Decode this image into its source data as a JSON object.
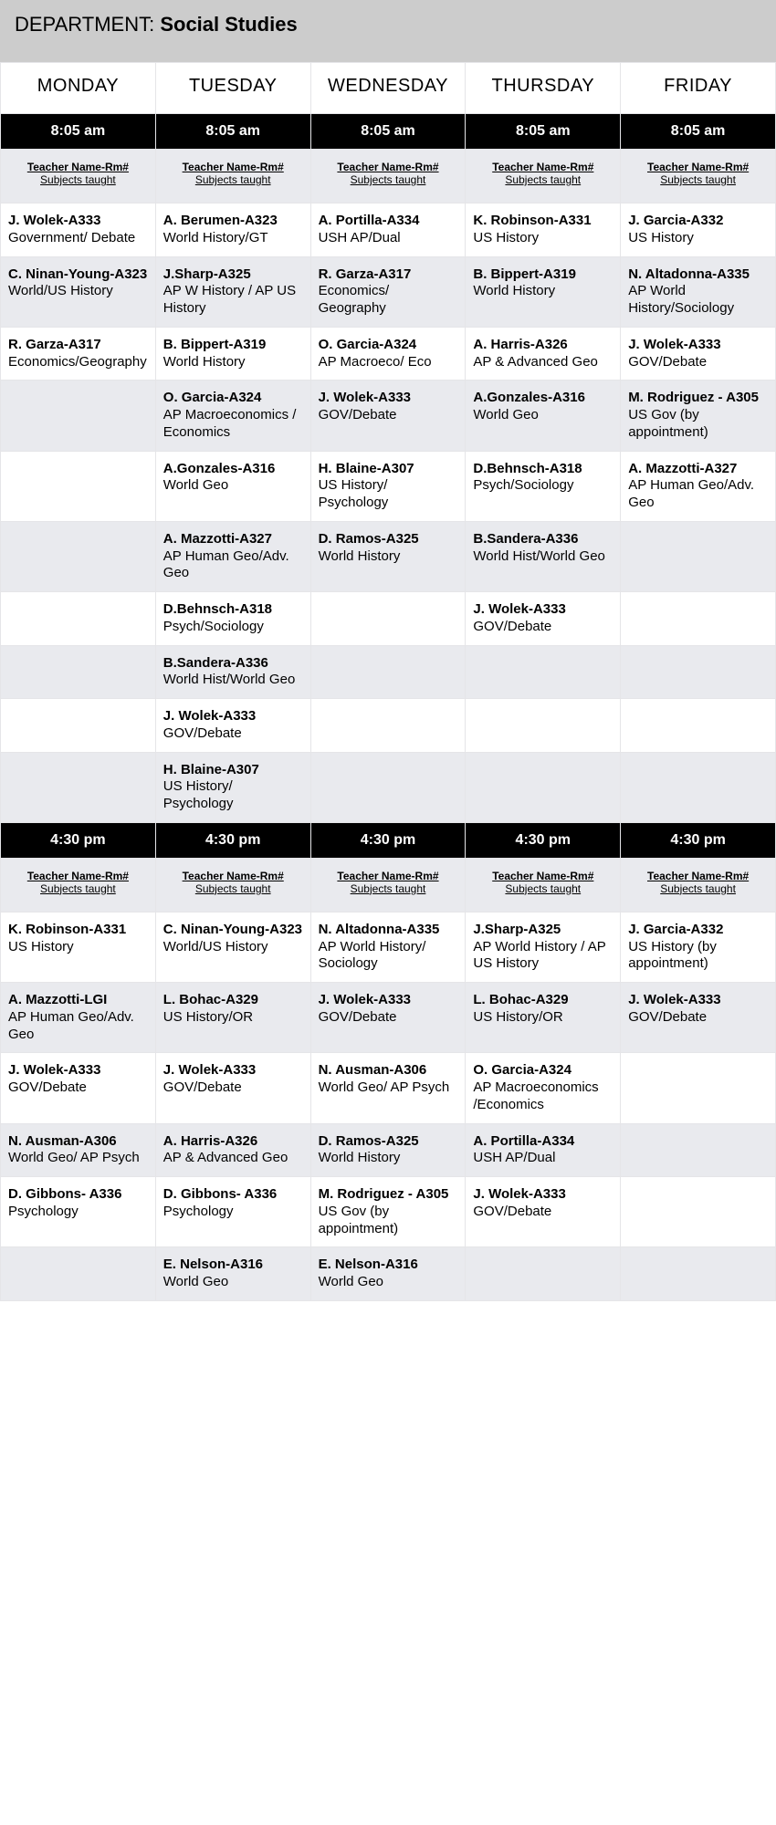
{
  "department_label": "DEPARTMENT:  ",
  "department_value": "Social Studies",
  "days": [
    "MONDAY",
    "TUESDAY",
    "WEDNESDAY",
    "THURSDAY",
    "FRIDAY"
  ],
  "time_am": "8:05 am",
  "time_pm": "4:30 pm",
  "subhead_line1": "Teacher Name-Rm#",
  "subhead_line2": "Subjects taught",
  "colors": {
    "header_bg": "#cccccc",
    "time_bg": "#000000",
    "time_fg": "#ffffff",
    "alt_bg": "#e9eaee",
    "border": "#e5e5e8"
  },
  "am_rows": [
    [
      {
        "t": "J. Wolek-A333",
        "s": "Government/ Debate"
      },
      {
        "t": "A. Berumen-A323",
        "s": "World History/GT"
      },
      {
        "t": "A. Portilla-A334",
        "s": "USH AP/Dual"
      },
      {
        "t": "K. Robinson-A331",
        "s": "US History"
      },
      {
        "t": "J. Garcia-A332",
        "s": "US History"
      }
    ],
    [
      {
        "t": "C. Ninan-Young-A323",
        "s": "World/US History"
      },
      {
        "t": "J.Sharp-A325",
        "s": "AP W History / AP US History"
      },
      {
        "t": "R. Garza-A317",
        "s": "Economics/ Geography"
      },
      {
        "t": "B. Bippert-A319",
        "s": "World History"
      },
      {
        "t": "N. Altadonna-A335",
        "s": "AP World History/Sociology"
      }
    ],
    [
      {
        "t": "R. Garza-A317",
        "s": "Economics/Geography"
      },
      {
        "t": "B. Bippert-A319",
        "s": "World History"
      },
      {
        "t": "O. Garcia-A324",
        "s": "AP Macroeco/ Eco"
      },
      {
        "t": "A. Harris-A326",
        "s": "AP & Advanced Geo"
      },
      {
        "t": "J. Wolek-A333",
        "s": "GOV/Debate"
      }
    ],
    [
      {
        "t": "",
        "s": ""
      },
      {
        "t": "O. Garcia-A324",
        "s": "AP Macroeconomics / Economics"
      },
      {
        "t": "J. Wolek-A333",
        "s": "GOV/Debate"
      },
      {
        "t": "A.Gonzales-A316",
        "s": "World Geo"
      },
      {
        "t": "M. Rodriguez - A305",
        "s": "US Gov (by appointment)"
      }
    ],
    [
      {
        "t": "",
        "s": ""
      },
      {
        "t": "A.Gonzales-A316",
        "s": "World Geo"
      },
      {
        "t": "H. Blaine-A307",
        "s": "US History/ Psychology"
      },
      {
        "t": "D.Behnsch-A318",
        "s": "Psych/Sociology"
      },
      {
        "t": "A. Mazzotti-A327",
        "s": "AP Human Geo/Adv. Geo"
      }
    ],
    [
      {
        "t": "",
        "s": ""
      },
      {
        "t": "A. Mazzotti-A327",
        "s": "AP Human Geo/Adv. Geo"
      },
      {
        "t": "D. Ramos-A325",
        "s": "World History"
      },
      {
        "t": "B.Sandera-A336",
        "s": "World Hist/World Geo"
      },
      {
        "t": "",
        "s": ""
      }
    ],
    [
      {
        "t": "",
        "s": ""
      },
      {
        "t": "D.Behnsch-A318",
        "s": "Psych/Sociology"
      },
      {
        "t": "",
        "s": ""
      },
      {
        "t": "J. Wolek-A333",
        "s": "GOV/Debate"
      },
      {
        "t": "",
        "s": ""
      }
    ],
    [
      {
        "t": "",
        "s": ""
      },
      {
        "t": "B.Sandera-A336",
        "s": "World Hist/World Geo"
      },
      {
        "t": "",
        "s": ""
      },
      {
        "t": "",
        "s": ""
      },
      {
        "t": "",
        "s": ""
      }
    ],
    [
      {
        "t": "",
        "s": ""
      },
      {
        "t": "J. Wolek-A333",
        "s": "GOV/Debate"
      },
      {
        "t": "",
        "s": ""
      },
      {
        "t": "",
        "s": ""
      },
      {
        "t": "",
        "s": ""
      }
    ],
    [
      {
        "t": "",
        "s": ""
      },
      {
        "t": "H. Blaine-A307",
        "s": "US History/ Psychology"
      },
      {
        "t": "",
        "s": ""
      },
      {
        "t": "",
        "s": ""
      },
      {
        "t": "",
        "s": ""
      }
    ]
  ],
  "pm_rows": [
    [
      {
        "t": "K. Robinson-A331",
        "s": "US History"
      },
      {
        "t": "C. Ninan-Young-A323",
        "s": "World/US History"
      },
      {
        "t": "N. Altadonna-A335",
        "s": "AP World History/ Sociology"
      },
      {
        "t": "J.Sharp-A325",
        "s": "AP World History / AP US History"
      },
      {
        "t": "J. Garcia-A332",
        "s": "US History (by appointment)"
      }
    ],
    [
      {
        "t": "A. Mazzotti-LGI",
        "s": "AP Human Geo/Adv. Geo"
      },
      {
        "t": "L. Bohac-A329",
        "s": "US History/OR"
      },
      {
        "t": "J. Wolek-A333",
        "s": "GOV/Debate"
      },
      {
        "t": "L. Bohac-A329",
        "s": "US History/OR"
      },
      {
        "t": "J. Wolek-A333",
        "s": "GOV/Debate"
      }
    ],
    [
      {
        "t": "J. Wolek-A333",
        "s": "GOV/Debate"
      },
      {
        "t": "J. Wolek-A333",
        "s": "GOV/Debate"
      },
      {
        "t": "N. Ausman-A306",
        "s": "World Geo/ AP Psych"
      },
      {
        "t": "O. Garcia-A324",
        "s": "AP Macroeconomics /Economics"
      },
      {
        "t": "",
        "s": ""
      }
    ],
    [
      {
        "t": "N. Ausman-A306",
        "s": "World Geo/\nAP Psych"
      },
      {
        "t": "A. Harris-A326",
        "s": "AP & Advanced Geo"
      },
      {
        "t": "D. Ramos-A325",
        "s": "World History"
      },
      {
        "t": "A. Portilla-A334",
        "s": "USH AP/Dual"
      },
      {
        "t": "",
        "s": ""
      }
    ],
    [
      {
        "t": "D. Gibbons- A336",
        "s": "Psychology"
      },
      {
        "t": "D. Gibbons- A336",
        "s": "Psychology"
      },
      {
        "t": "M. Rodriguez - A305",
        "s": "US Gov (by appointment)"
      },
      {
        "t": "J. Wolek-A333",
        "s": "GOV/Debate"
      },
      {
        "t": "",
        "s": ""
      }
    ],
    [
      {
        "t": "",
        "s": ""
      },
      {
        "t": "E. Nelson-A316",
        "s": "World Geo"
      },
      {
        "t": "E. Nelson-A316",
        "s": "World Geo"
      },
      {
        "t": "",
        "s": ""
      },
      {
        "t": "",
        "s": ""
      }
    ]
  ]
}
